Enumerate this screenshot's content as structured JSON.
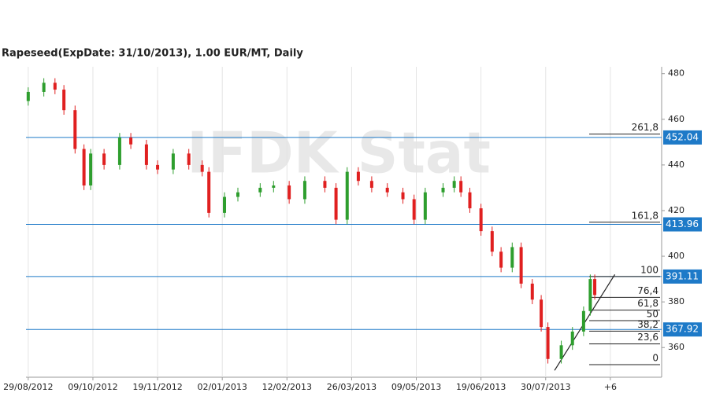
{
  "chart_data": {
    "type": "candlestick",
    "title": "Rapeseed(ExpDate: 31/10/2013), 1.00 EUR/MT, Daily",
    "watermark": "IFDK Stat",
    "x": [
      0,
      7,
      12,
      16,
      21,
      25,
      28,
      34,
      41,
      46,
      53,
      58,
      65,
      72,
      78,
      81,
      88,
      94,
      104,
      110,
      117,
      124,
      133,
      138,
      143,
      148,
      154,
      161,
      168,
      173,
      178,
      186,
      191,
      194,
      198,
      203,
      208,
      212,
      217,
      221,
      226,
      230,
      233,
      239,
      244,
      249,
      252,
      254
    ],
    "open": [
      468,
      472,
      476,
      473,
      464,
      447,
      431,
      445,
      440,
      452,
      449,
      440,
      438,
      445,
      440,
      437,
      419,
      426,
      428,
      430,
      431,
      425,
      433,
      430,
      416,
      437,
      433,
      430,
      428,
      425,
      416,
      428,
      430,
      433,
      428,
      421,
      411,
      402,
      395,
      404,
      388,
      381,
      369,
      355,
      361,
      367,
      376,
      390
    ],
    "high": [
      474,
      478,
      478,
      475,
      466,
      449,
      447,
      447,
      454,
      454,
      451,
      442,
      447,
      447,
      442,
      439,
      428,
      430,
      432,
      433,
      433,
      435,
      435,
      432,
      439,
      439,
      435,
      432,
      430,
      427,
      430,
      432,
      435,
      435,
      430,
      423,
      413,
      404,
      406,
      406,
      390,
      383,
      371,
      363,
      369,
      378,
      392,
      392
    ],
    "low": [
      466,
      470,
      471,
      462,
      445,
      429,
      429,
      438,
      438,
      447,
      438,
      436,
      436,
      438,
      435,
      417,
      417,
      424,
      426,
      428,
      423,
      423,
      428,
      414,
      414,
      431,
      428,
      426,
      423,
      414,
      414,
      426,
      428,
      426,
      419,
      409,
      400,
      393,
      393,
      386,
      379,
      367,
      353,
      353,
      359,
      365,
      374,
      381
    ],
    "close": [
      472,
      476,
      473,
      464,
      447,
      431,
      445,
      440,
      452,
      449,
      440,
      438,
      445,
      440,
      437,
      419,
      426,
      428,
      430,
      431,
      425,
      433,
      430,
      416,
      437,
      433,
      430,
      428,
      425,
      416,
      428,
      430,
      433,
      428,
      421,
      411,
      402,
      395,
      404,
      388,
      381,
      369,
      355,
      361,
      367,
      376,
      390,
      383
    ],
    "up_color": "#2e9e2e",
    "down_color": "#e02020",
    "xlim": [
      -1,
      284
    ],
    "ylim": [
      347,
      483
    ],
    "xticks": [
      {
        "value": 0,
        "label": "29/08/2012"
      },
      {
        "value": 29,
        "label": "09/10/2012"
      },
      {
        "value": 58,
        "label": "19/11/2012"
      },
      {
        "value": 87,
        "label": "02/01/2013"
      },
      {
        "value": 116,
        "label": "12/02/2013"
      },
      {
        "value": 145,
        "label": "26/03/2013"
      },
      {
        "value": 174,
        "label": "09/05/2013"
      },
      {
        "value": 203,
        "label": "19/06/2013"
      },
      {
        "value": 232,
        "label": "30/07/2013"
      },
      {
        "value": 261,
        "label": "+6"
      }
    ],
    "yticks": [
      360,
      380,
      400,
      420,
      440,
      460,
      480
    ],
    "grid": true,
    "levels": [
      452.04,
      413.96,
      391.11,
      367.92
    ],
    "level_color": "#1e7ac8",
    "fib": [
      {
        "label": "261,8",
        "value": 453.5
      },
      {
        "label": "161,8",
        "value": 414.9
      },
      {
        "label": "100",
        "value": 391.1
      },
      {
        "label": "76,4",
        "value": 382
      },
      {
        "label": "61,8",
        "value": 376.4
      },
      {
        "label": "50",
        "value": 371.8
      },
      {
        "label": "38,2",
        "value": 367.2
      },
      {
        "label": "23,6",
        "value": 361.6
      },
      {
        "label": "0",
        "value": 352.5
      }
    ],
    "trendline": {
      "x": [
        236,
        263
      ],
      "y": [
        350,
        392
      ]
    }
  }
}
